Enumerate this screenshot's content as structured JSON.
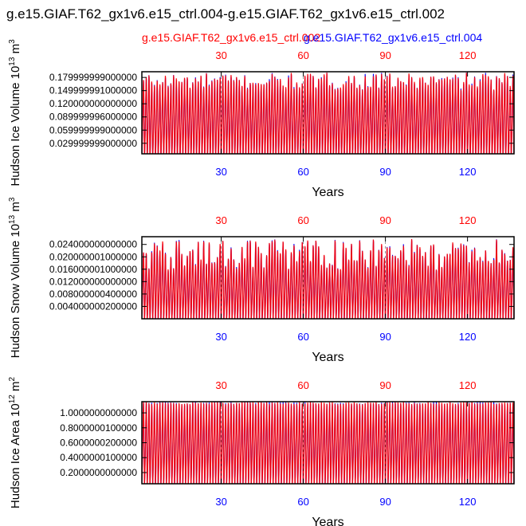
{
  "page": {
    "title": "g.e15.GIAF.T62_gx1v6.e15_ctrl.004-g.e15.GIAF.T62_gx1v6.e15_ctrl.002",
    "legend": [
      {
        "label": "g.e15.GIAF.T62_gx1v6.e15_ctrl.002",
        "color": "#ff0000"
      },
      {
        "label": "g.e15.GIAF.T62_gx1v6.e15_ctrl.004",
        "color": "#0000ff"
      }
    ]
  },
  "chart_data": [
    {
      "type": "line",
      "title": "",
      "xlabel": "Years",
      "ylabel_main": "Hudson Ice Volume 10",
      "ylabel_exp": "13",
      "ylabel_unit": "m",
      "ylabel_unit_exp": "3",
      "xlim": [
        1,
        137
      ],
      "ylim": [
        0.006,
        0.193
      ],
      "xticks": [
        30,
        60,
        90,
        120
      ],
      "top_tick_labels": [
        "30",
        "60",
        "90",
        "120"
      ],
      "bottom_tick_labels": [
        "30",
        "60",
        "90",
        "120"
      ],
      "top_tick_color": "#ff0000",
      "bottom_tick_color": "#0000ff",
      "yticks": [
        0.03,
        0.06,
        0.09,
        0.12,
        0.15,
        0.18
      ],
      "ytick_labels": [
        "0.029999999000000",
        "0.059999999000000",
        "0.089999996000000",
        "0.120000000000000",
        "0.149999991000000",
        "0.179999999000000"
      ],
      "series": [
        {
          "name": "g.e15.GIAF.T62_gx1v6.e15_ctrl.004",
          "color": "#0000ff",
          "seasonal_min": 0.0,
          "annual_max_range": [
            0.155,
            0.192
          ]
        },
        {
          "name": "g.e15.GIAF.T62_gx1v6.e15_ctrl.002",
          "color": "#ff0000",
          "seasonal_min": 0.0,
          "annual_max_range": [
            0.155,
            0.192
          ]
        }
      ],
      "reference_lines_x": [
        30,
        60,
        90
      ]
    },
    {
      "type": "line",
      "title": "",
      "xlabel": "Years",
      "ylabel_main": "Hudson Snow Volume 10",
      "ylabel_exp": "13",
      "ylabel_unit": "m",
      "ylabel_unit_exp": "3",
      "xlim": [
        1,
        137
      ],
      "ylim": [
        0.0,
        0.0265
      ],
      "xticks": [
        30,
        60,
        90,
        120
      ],
      "top_tick_labels": [
        "30",
        "60",
        "90",
        "120"
      ],
      "bottom_tick_labels": [
        "30",
        "60",
        "90",
        "120"
      ],
      "top_tick_color": "#ff0000",
      "bottom_tick_color": "#0000ff",
      "yticks": [
        0.004,
        0.008,
        0.012,
        0.016,
        0.02,
        0.024
      ],
      "ytick_labels": [
        "0.004000000200000",
        "0.008000000400000",
        "0.012000000000000",
        "0.016000001000000",
        "0.020000001000000",
        "0.024000000000000"
      ],
      "series": [
        {
          "name": "g.e15.GIAF.T62_gx1v6.e15_ctrl.004",
          "color": "#0000ff",
          "seasonal_min": 0.0,
          "annual_max_range": [
            0.016,
            0.026
          ]
        },
        {
          "name": "g.e15.GIAF.T62_gx1v6.e15_ctrl.002",
          "color": "#ff0000",
          "seasonal_min": 0.0,
          "annual_max_range": [
            0.016,
            0.026
          ]
        }
      ],
      "reference_lines_x": [
        30,
        60,
        90
      ]
    },
    {
      "type": "line",
      "title": "",
      "xlabel": "Years",
      "ylabel_main": "Hudson Ice Area 10",
      "ylabel_exp": "12",
      "ylabel_unit": "m",
      "ylabel_unit_exp": "2",
      "xlim": [
        1,
        137
      ],
      "ylim": [
        0.05,
        1.15
      ],
      "xticks": [
        30,
        60,
        90,
        120
      ],
      "top_tick_labels": [
        "30",
        "60",
        "90",
        "120"
      ],
      "bottom_tick_labels": [
        "30",
        "60",
        "90",
        "120"
      ],
      "top_tick_color": "#ff0000",
      "bottom_tick_color": "#0000ff",
      "yticks": [
        0.2,
        0.4,
        0.6,
        0.8,
        1.0
      ],
      "ytick_labels": [
        "0.2000000000000",
        "0.4000000100000",
        "0.6000000200000",
        "0.8000000100000",
        "1.0000000000000"
      ],
      "series": [
        {
          "name": "g.e15.GIAF.T62_gx1v6.e15_ctrl.004",
          "color": "#0000ff",
          "seasonal_min": 0.05,
          "annual_max_range": [
            1.14,
            1.15
          ]
        },
        {
          "name": "g.e15.GIAF.T62_gx1v6.e15_ctrl.002",
          "color": "#ff0000",
          "seasonal_min": 0.05,
          "annual_max_range": [
            1.14,
            1.15
          ]
        }
      ],
      "reference_lines_x": [
        30,
        60,
        90
      ]
    }
  ]
}
